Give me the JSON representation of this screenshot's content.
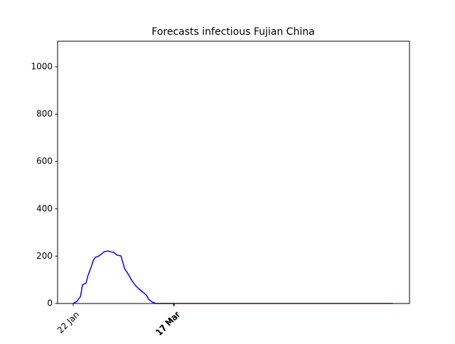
{
  "chart_data": {
    "type": "line",
    "title": "Forecasts infectious Fujian China",
    "xlim": [
      -8.5,
      183
    ],
    "ylim": [
      0,
      1108
    ],
    "xticks": [
      {
        "value": 0,
        "label": "22 Jan"
      },
      {
        "value": 54.6,
        "label": "17 Mar"
      },
      {
        "value": 55,
        "label": "17 Mar"
      }
    ],
    "yticks": [
      0,
      200,
      400,
      600,
      800,
      1000
    ],
    "series": [
      {
        "color": "#0000ff",
        "x": [
          0,
          2,
          4,
          5,
          7,
          8,
          10,
          11,
          12,
          14,
          16,
          17,
          19,
          20,
          22,
          24,
          26,
          28,
          30,
          32,
          34,
          36,
          38,
          40,
          41,
          43,
          45,
          55
        ],
        "values": [
          0,
          9,
          30,
          78,
          87,
          117,
          159,
          183,
          195,
          201,
          213,
          219,
          222,
          219,
          216,
          204,
          201,
          147,
          123,
          96,
          75,
          60,
          48,
          33,
          18,
          6,
          0,
          0
        ]
      },
      {
        "color": "#ff0000",
        "x": [
          55,
          174
        ],
        "values": [
          0,
          0
        ]
      }
    ]
  }
}
